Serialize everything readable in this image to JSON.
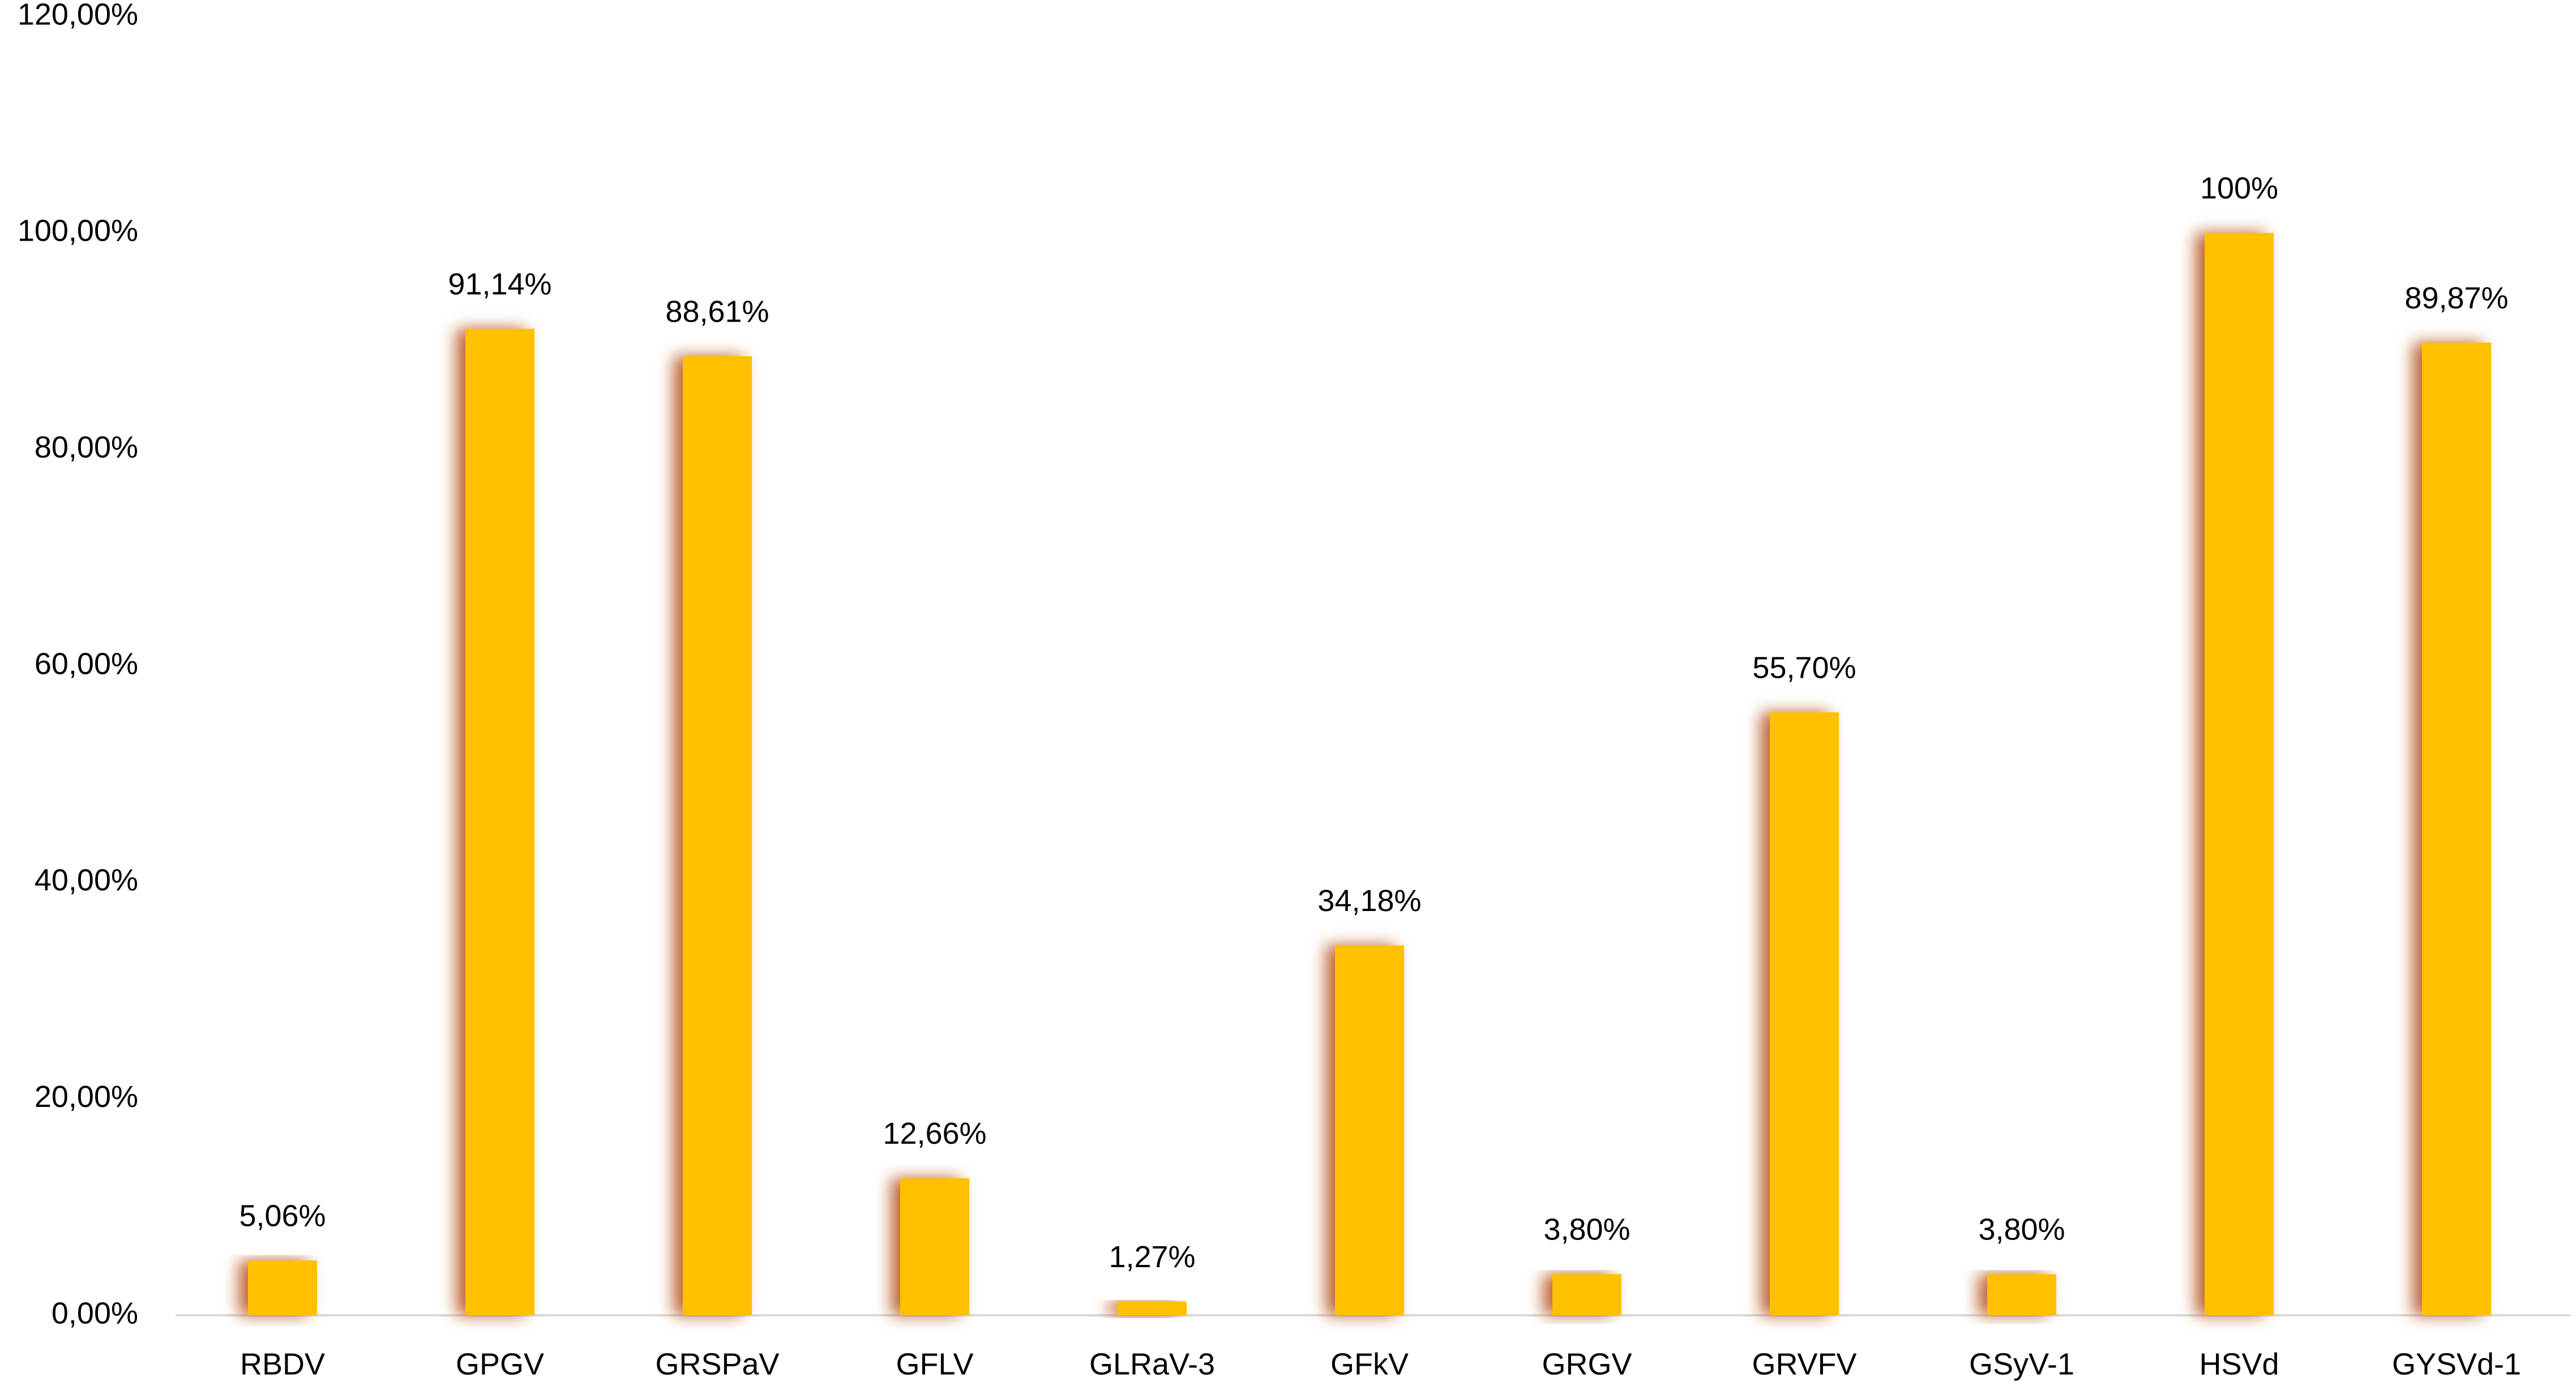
{
  "chart_data": {
    "type": "bar",
    "categories": [
      "RBDV",
      "GPGV",
      "GRSPaV",
      "GFLV",
      "GLRaV-3",
      "GFkV",
      "GRGV",
      "GRVFV",
      "GSyV-1",
      "HSVd",
      "GYSVd-1"
    ],
    "values": [
      5.06,
      91.14,
      88.61,
      12.66,
      1.27,
      34.18,
      3.8,
      55.7,
      3.8,
      100,
      89.87
    ],
    "value_labels": [
      "5,06%",
      "91,14%",
      "88,61%",
      "12,66%",
      "1,27%",
      "34,18%",
      "3,80%",
      "55,70%",
      "3,80%",
      "100%",
      "89,87%"
    ],
    "color": "#ffc000",
    "ylim": [
      0,
      120
    ],
    "yticks": [
      {
        "value": 0,
        "label": "0,00%"
      },
      {
        "value": 20,
        "label": "20,00%"
      },
      {
        "value": 40,
        "label": "40,00%"
      },
      {
        "value": 60,
        "label": "60,00%"
      },
      {
        "value": 80,
        "label": "80,00%"
      },
      {
        "value": 100,
        "label": "100,00%"
      },
      {
        "value": 120,
        "label": "120,00%"
      }
    ],
    "grid": false
  }
}
